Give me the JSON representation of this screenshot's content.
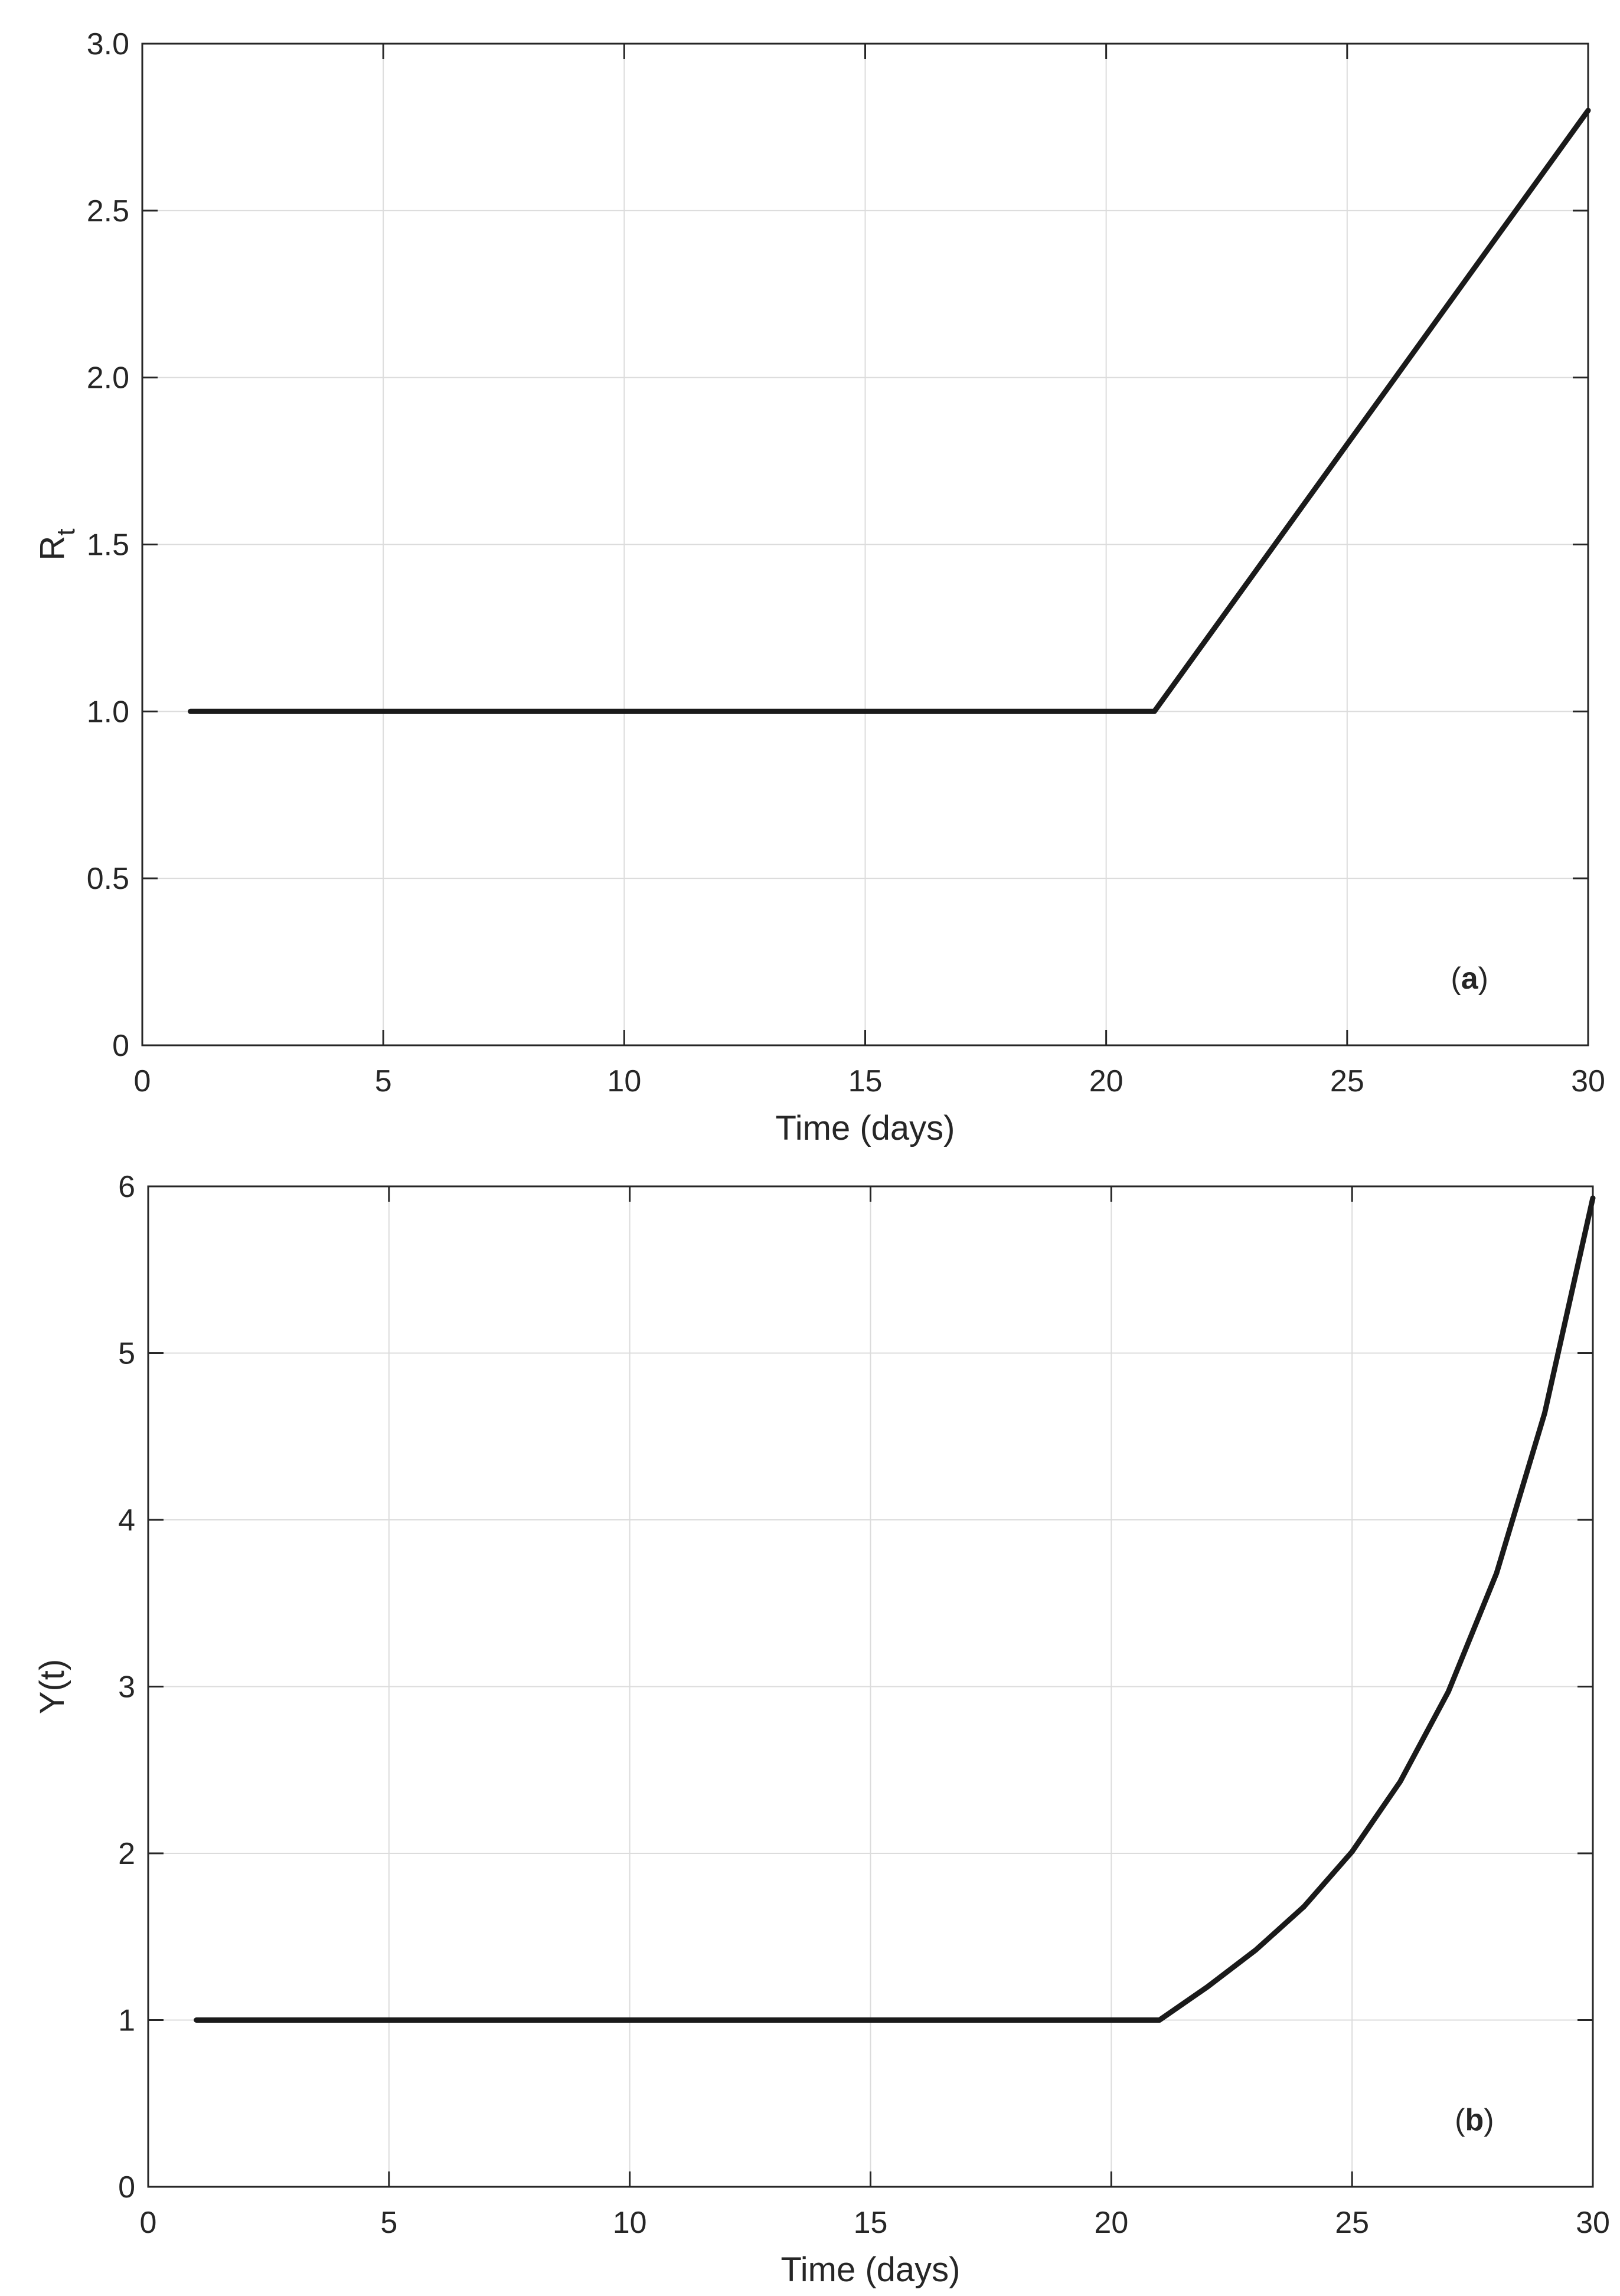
{
  "chart_data": [
    {
      "type": "line",
      "panel_label": {
        "prefix": "(",
        "letter": "a",
        "suffix": ")"
      },
      "xlabel": "Time (days)",
      "ylabel": "R",
      "ylabel_sub": "t",
      "xlim": [
        0,
        30
      ],
      "ylim": [
        0,
        3
      ],
      "xticks": [
        0,
        5,
        10,
        15,
        20,
        25,
        30
      ],
      "xtick_labels": [
        "0",
        "5",
        "10",
        "15",
        "20",
        "25",
        "30"
      ],
      "yticks": [
        0,
        0.5,
        1,
        1.5,
        2,
        2.5,
        3
      ],
      "ytick_labels": [
        "0",
        "0.5",
        "1.0",
        "1.5",
        "2.0",
        "2.5",
        "3.0"
      ],
      "grid": true,
      "series": [
        {
          "color": "#1a1a1a",
          "x": [
            1,
            2,
            3,
            4,
            5,
            6,
            7,
            8,
            9,
            10,
            11,
            12,
            13,
            14,
            15,
            16,
            17,
            18,
            19,
            20,
            21,
            22,
            23,
            24,
            25,
            26,
            27,
            28,
            29,
            30
          ],
          "y": [
            1,
            1,
            1,
            1,
            1,
            1,
            1,
            1,
            1,
            1,
            1,
            1,
            1,
            1,
            1,
            1,
            1,
            1,
            1,
            1,
            1,
            1.2,
            1.4,
            1.6,
            1.8,
            2.0,
            2.2,
            2.4,
            2.6,
            2.8
          ]
        }
      ]
    },
    {
      "type": "line",
      "panel_label": {
        "prefix": "(",
        "letter": "b",
        "suffix": ")"
      },
      "xlabel": "Time (days)",
      "ylabel": "Y(t)",
      "xlim": [
        0,
        30
      ],
      "ylim": [
        0,
        6
      ],
      "xticks": [
        0,
        5,
        10,
        15,
        20,
        25,
        30
      ],
      "xtick_labels": [
        "0",
        "5",
        "10",
        "15",
        "20",
        "25",
        "30"
      ],
      "yticks": [
        0,
        1,
        2,
        3,
        4,
        5,
        6
      ],
      "ytick_labels": [
        "0",
        "1",
        "2",
        "3",
        "4",
        "5",
        "6"
      ],
      "grid": true,
      "series": [
        {
          "color": "#1a1a1a",
          "x": [
            1,
            2,
            3,
            4,
            5,
            6,
            7,
            8,
            9,
            10,
            11,
            12,
            13,
            14,
            15,
            16,
            17,
            18,
            19,
            20,
            21,
            22,
            23,
            24,
            25,
            26,
            27,
            28,
            29,
            30
          ],
          "y": [
            1,
            1,
            1,
            1,
            1,
            1,
            1,
            1,
            1,
            1,
            1,
            1,
            1,
            1,
            1,
            1,
            1,
            1,
            1,
            1,
            1,
            1.2,
            1.42,
            1.68,
            2.01,
            2.43,
            2.97,
            3.68,
            4.64,
            5.93
          ]
        }
      ]
    }
  ]
}
